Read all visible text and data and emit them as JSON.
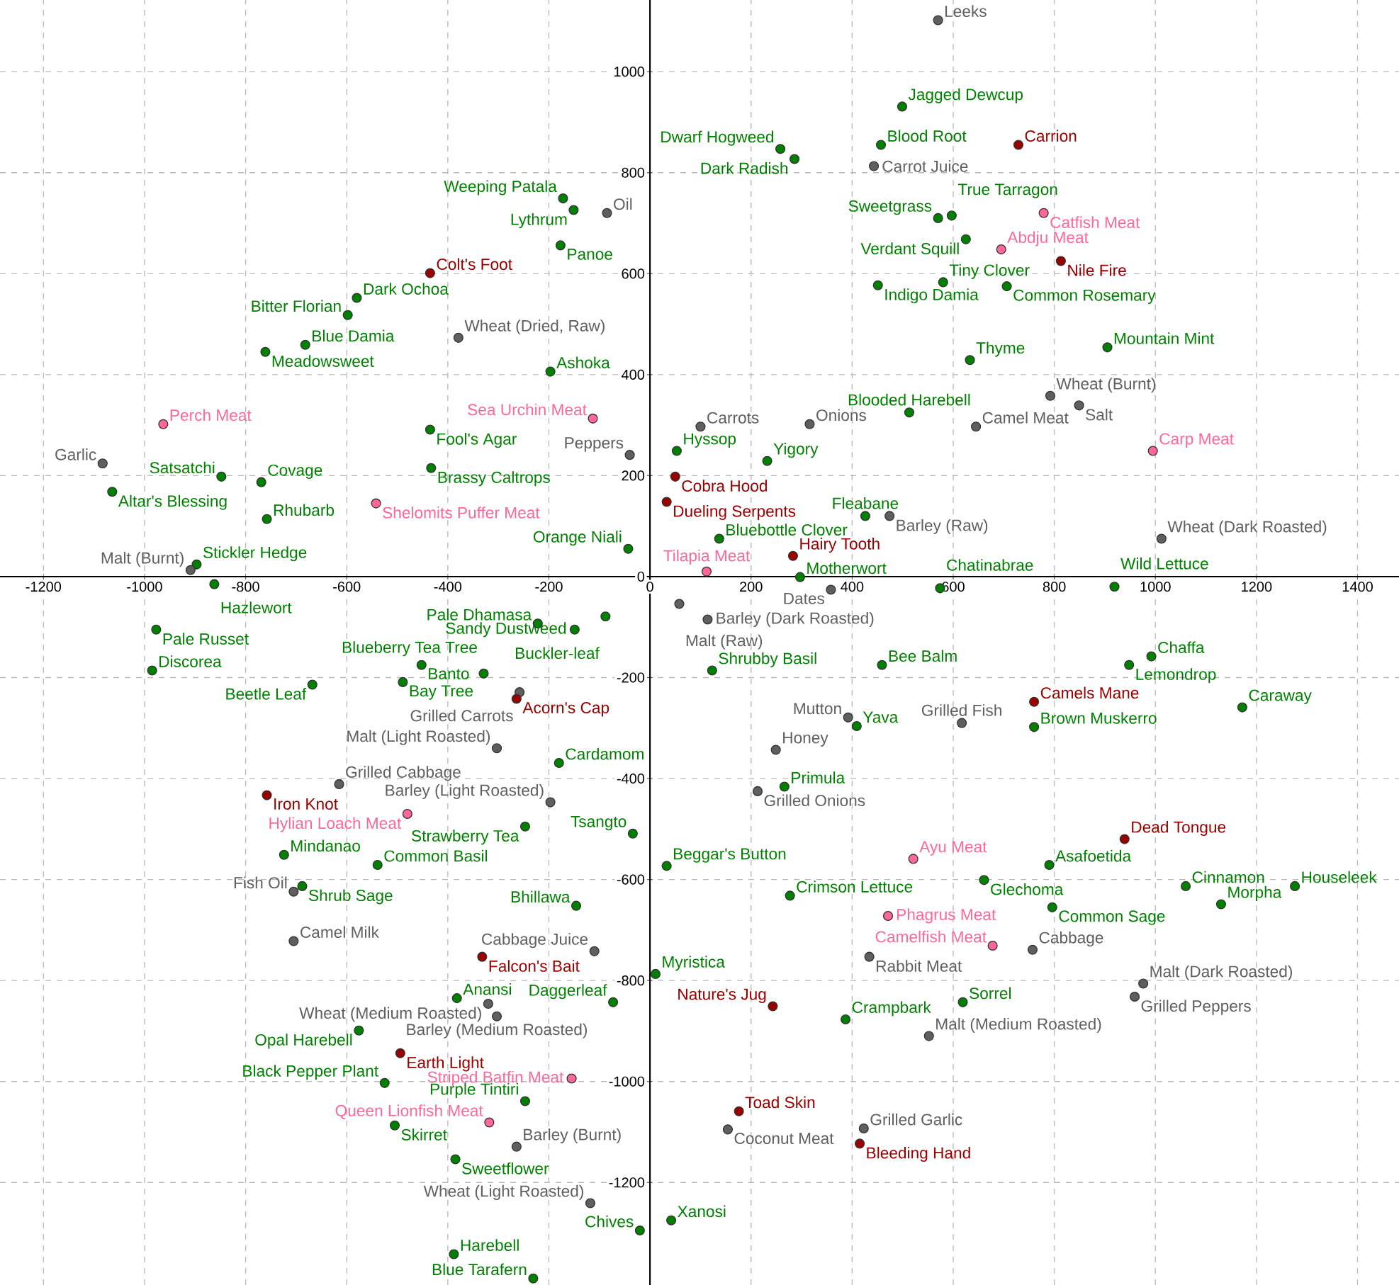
{
  "chart_data": {
    "type": "scatter",
    "marker": "circle",
    "grid": true,
    "xlim": [
      -1286,
      1482
    ],
    "ylim": [
      -1403,
      1142
    ],
    "xticks": [
      -1200,
      -1000,
      -800,
      -600,
      -400,
      -200,
      0,
      200,
      400,
      600,
      800,
      1000,
      1200,
      1400
    ],
    "yticks": [
      -1200,
      -1000,
      -800,
      -600,
      -400,
      -200,
      0,
      200,
      400,
      600,
      800,
      1000
    ],
    "series": [
      {
        "color": "#008000",
        "x": [
          -580,
          -598,
          -761,
          -682,
          -1064,
          -848,
          -769,
          -758,
          -435,
          -433,
          -897,
          -862,
          -977,
          499,
          258,
          286,
          457,
          -172,
          -151,
          -177,
          451,
          -197,
          53,
          232,
          513,
          426,
          -43,
          137,
          297,
          -88,
          -222,
          -149,
          570,
          597,
          625,
          580,
          706,
          905,
          633,
          574,
          919,
          -985,
          -668,
          -489,
          -452,
          -724,
          -539,
          -688,
          -382,
          -576,
          -525,
          -505,
          -385,
          -388,
          -329,
          -247,
          123,
          -180,
          409,
          266,
          -34,
          33,
          277,
          -146,
          11,
          -73,
          387,
          -247,
          -20,
          42,
          -231,
          459,
          948,
          992,
          760,
          1172,
          790,
          661,
          1060,
          1276,
          1130,
          796,
          619
        ],
        "values": [
          552,
          518,
          445,
          459,
          168,
          198,
          187,
          114,
          291,
          215,
          24,
          -15,
          -105,
          931,
          847,
          827,
          855,
          749,
          726,
          656,
          577,
          406,
          249,
          229,
          325,
          120,
          55,
          75,
          -1,
          -79,
          -93,
          -105,
          710,
          715,
          668,
          583,
          575,
          454,
          429,
          -23,
          -20,
          -186,
          -214,
          -209,
          -175,
          -551,
          -571,
          -613,
          -835,
          -899,
          -1003,
          -1087,
          -1154,
          -1342,
          -192,
          -495,
          -186,
          -369,
          -296,
          -416,
          -509,
          -573,
          -632,
          -652,
          -787,
          -843,
          -877,
          -1039,
          -1295,
          -1275,
          -1390,
          -175,
          -175,
          -158,
          -298,
          -259,
          -571,
          -601,
          -613,
          -613,
          -649,
          -655,
          -843
        ],
        "value_labels": [
          "Dark Ochoa",
          "Bitter Florian",
          "Meadowsweet",
          "Blue Damia",
          "Altar's Blessing",
          "Satsatchi",
          "Covage",
          "Rhubarb",
          "Fool's Agar",
          "Brassy Caltrops",
          "Stickler Hedge",
          "Hazlewort",
          "Pale Russet",
          "Jagged Dewcup",
          "Dwarf Hogweed",
          "Dark Radish",
          "Blood Root",
          "Weeping Patala",
          "Lythrum",
          "Panoe",
          "Indigo Damia",
          "Ashoka",
          "Hyssop",
          "Yigory",
          "Blooded Harebell",
          "Fleabane",
          "Orange Niali",
          "Bluebottle Clover",
          "Motherwort",
          "Buckler-leaf",
          "Pale Dhamasa",
          "Sandy Dustweed",
          "Sweetgrass",
          "True Tarragon",
          "Verdant Squill",
          "Tiny Clover",
          "Common Rosemary",
          "Mountain Mint",
          "Thyme",
          "Chatinabrae",
          "Wild Lettuce",
          "Discorea",
          "Beetle Leaf",
          "Bay Tree",
          "Banto",
          "Mindanao",
          "Common Basil",
          "Shrub Sage",
          "Anansi",
          "Opal Harebell",
          "Black Pepper Plant",
          "Skirret",
          "Sweetflower",
          "Harebell",
          "Blueberry Tea Tree",
          "Strawberry Tea",
          "Shrubby Basil",
          "Cardamom",
          "Yava",
          "Primula",
          "Tsangto",
          "Beggar's Button",
          "Crimson Lettuce",
          "Bhillawa",
          "Myristica",
          "Daggerleaf",
          "Crampbark",
          "Purple Tintiri",
          "Chives",
          "Xanosi",
          "Blue Tarafern",
          "Bee Balm",
          "Lemondrop",
          "Chaffa",
          "Brown Muskerro",
          "Caraway",
          "Asafoetida",
          "Glechoma",
          "Cinnamon",
          "Houseleek",
          "Morpha",
          "Common Sage",
          "Sorrel"
        ]
      },
      {
        "color": "#5f5f5f",
        "x": [
          -379,
          -1083,
          -909,
          570,
          443,
          -85,
          100,
          316,
          -40,
          474,
          358,
          58,
          114,
          792,
          849,
          645,
          1012,
          -615,
          -705,
          -705,
          -258,
          -303,
          392,
          249,
          213,
          -197,
          -110,
          434,
          552,
          -320,
          -303,
          -264,
          154,
          423,
          -118,
          617,
          757,
          976,
          959
        ],
        "values": [
          473,
          224,
          13,
          1102,
          813,
          720,
          297,
          302,
          241,
          120,
          -26,
          -54,
          -85,
          358,
          339,
          297,
          75,
          -411,
          -624,
          -722,
          -229,
          -340,
          -279,
          -343,
          -425,
          -447,
          -742,
          -753,
          -910,
          -846,
          -871,
          -1129,
          -1095,
          -1093,
          -1241,
          -290,
          -739,
          -806,
          -832
        ],
        "value_labels": [
          "Wheat (Dried, Raw)",
          "Garlic",
          "Malt (Burnt)",
          "Leeks",
          "Carrot Juice",
          "Oil",
          "Carrots",
          "Onions",
          "Peppers",
          "Barley (Raw)",
          "Dates",
          "Malt (Raw)",
          "Barley (Dark Roasted)",
          "Wheat (Burnt)",
          "Salt",
          "Camel Meat",
          "Wheat (Dark Roasted)",
          "Grilled Cabbage",
          "Fish Oil",
          "Camel Milk",
          "Grilled Carrots",
          "Malt (Light Roasted)",
          "Mutton",
          "Honey",
          "Grilled Onions",
          "Barley (Light Roasted)",
          "Cabbage Juice",
          "Rabbit Meat",
          "Malt (Medium Roasted)",
          "Wheat (Medium Roasted)",
          "Barley (Medium Roasted)",
          "Barley (Burnt)",
          "Coconut Meat",
          "Grilled Garlic",
          "Wheat (Light Roasted)",
          "Grilled Fish",
          "Cabbage",
          "Malt (Dark Roasted)",
          "Grilled Peppers"
        ]
      },
      {
        "color": "#990000",
        "x": [
          -435,
          729,
          813,
          50,
          33,
          283,
          -758,
          -494,
          -264,
          -332,
          243,
          176,
          415,
          760,
          939
        ],
        "values": [
          601,
          855,
          625,
          198,
          148,
          41,
          -433,
          -944,
          -242,
          -753,
          -851,
          -1059,
          -1123,
          -248,
          -520
        ],
        "value_labels": [
          "Colt's Foot",
          "Carrion",
          "Nile Fire",
          "Cobra Hood",
          "Dueling Serpents",
          "Hairy Tooth",
          "Iron Knot",
          "Earth Light",
          "Acorn's Cap",
          "Falcon's Bait",
          "Nature's Jug",
          "Toad Skin",
          "Bleeding Hand",
          "Camels Mane",
          "Dead Tongue"
        ]
      },
      {
        "color": "#ff6699",
        "x": [
          -963,
          -542,
          -113,
          112,
          779,
          695,
          995,
          -480,
          521,
          471,
          -155,
          -318,
          678
        ],
        "values": [
          302,
          145,
          313,
          10,
          720,
          648,
          249,
          -470,
          -559,
          -672,
          -994,
          -1081,
          -731
        ],
        "value_labels": [
          "Perch Meat",
          "Shelomits Puffer Meat",
          "Sea Urchin Meat",
          "Tilapia Meat",
          "Catfish Meat",
          "Abdju Meat",
          "Carp Meat",
          "Hylian Loach Meat",
          "Ayu Meat",
          "Phagrus Meat",
          "Striped Batfin Meat",
          "Queen Lionfish Meat",
          "Camelfish Meat"
        ]
      }
    ]
  }
}
